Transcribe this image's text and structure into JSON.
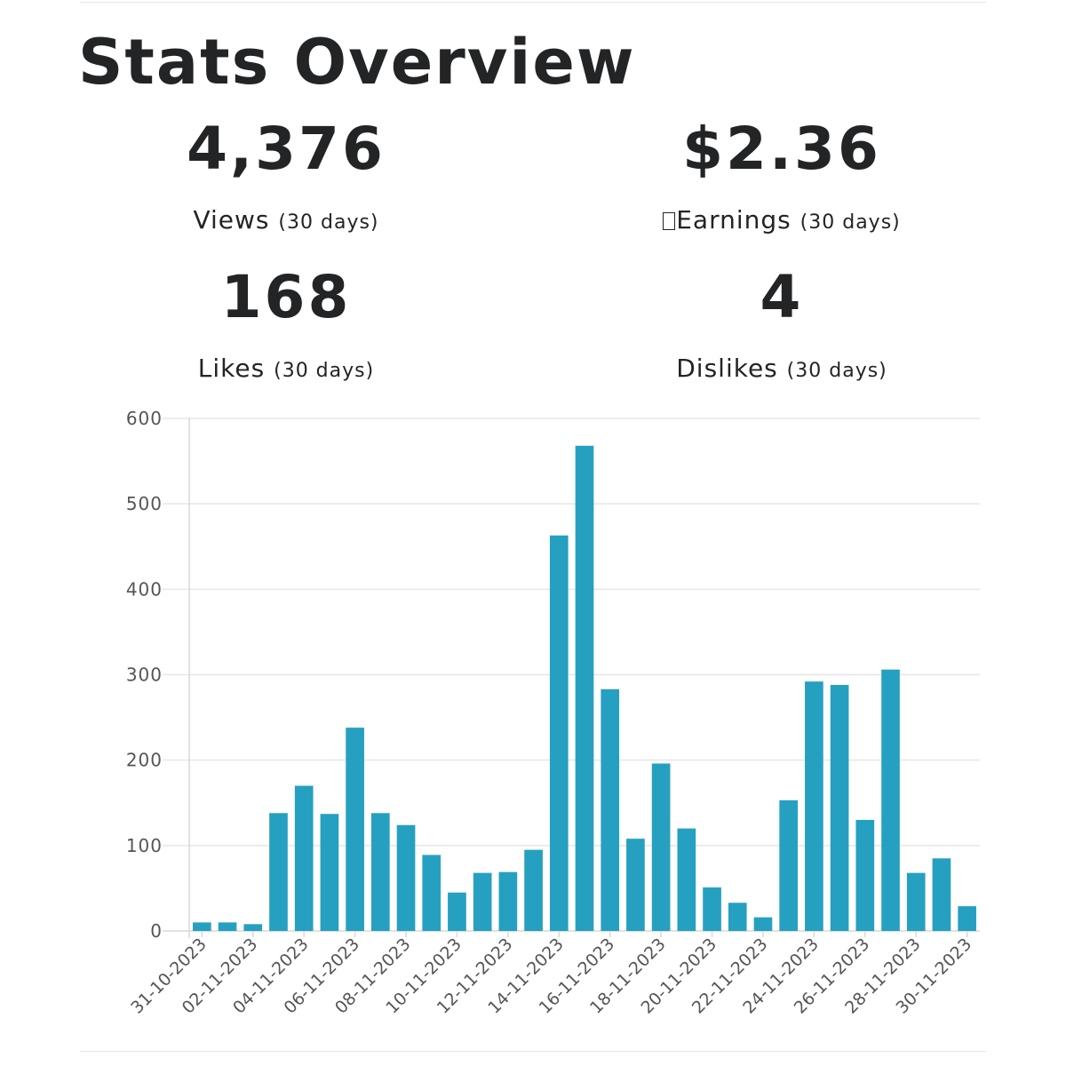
{
  "header": {
    "title": "Stats Overview"
  },
  "stats": {
    "views": {
      "value": "4,376",
      "label": "Views",
      "period": "(30 days)"
    },
    "earnings": {
      "value": "$2.36",
      "label": "Earnings",
      "period": "(30 days)"
    },
    "likes": {
      "value": "168",
      "label": "Likes",
      "period": "(30 days)"
    },
    "dislikes": {
      "value": "4",
      "label": "Dislikes",
      "period": "(30 days)"
    }
  },
  "colors": {
    "bar": "#26a0c1",
    "grid": "#e6e6e6",
    "axis": "#d9d9d9",
    "text": "#222426",
    "tick_text": "#555555"
  },
  "chart_data": {
    "type": "bar",
    "x": [
      "31-10-2023",
      "01-11-2023",
      "02-11-2023",
      "03-11-2023",
      "04-11-2023",
      "05-11-2023",
      "06-11-2023",
      "07-11-2023",
      "08-11-2023",
      "09-11-2023",
      "10-11-2023",
      "11-11-2023",
      "12-11-2023",
      "13-11-2023",
      "14-11-2023",
      "15-11-2023",
      "16-11-2023",
      "17-11-2023",
      "18-11-2023",
      "19-11-2023",
      "20-11-2023",
      "21-11-2023",
      "22-11-2023",
      "23-11-2023",
      "24-11-2023",
      "25-11-2023",
      "26-11-2023",
      "27-11-2023",
      "28-11-2023",
      "29-11-2023",
      "30-11-2023"
    ],
    "values": [
      10,
      10,
      8,
      138,
      170,
      137,
      238,
      138,
      124,
      89,
      45,
      68,
      69,
      95,
      463,
      568,
      283,
      108,
      196,
      120,
      51,
      33,
      16,
      153,
      292,
      288,
      130,
      306,
      68,
      85,
      29
    ],
    "x_tick_labels": [
      "31-10-2023",
      "02-11-2023",
      "04-11-2023",
      "06-11-2023",
      "08-11-2023",
      "10-11-2023",
      "12-11-2023",
      "14-11-2023",
      "16-11-2023",
      "18-11-2023",
      "20-11-2023",
      "22-11-2023",
      "24-11-2023",
      "26-11-2023",
      "28-11-2023",
      "30-11-2023"
    ],
    "y_ticks": [
      0,
      100,
      200,
      300,
      400,
      500,
      600
    ],
    "ylim": [
      0,
      600
    ],
    "title": "",
    "xlabel": "",
    "ylabel": "",
    "grid": true,
    "legend": false
  }
}
